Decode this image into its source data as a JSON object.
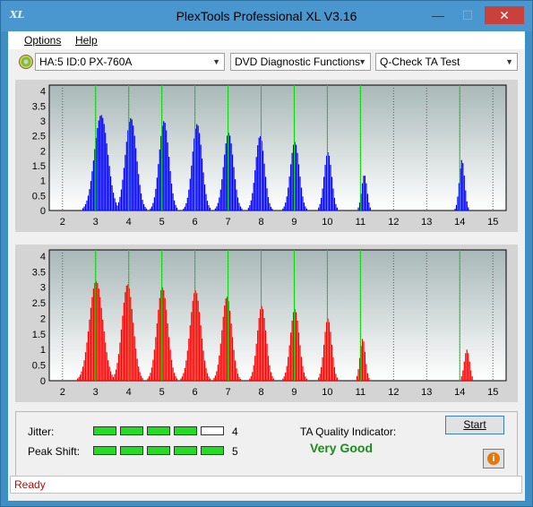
{
  "window": {
    "icon_text": "XL",
    "title": "PlexTools Professional XL V3.16",
    "minimize": "—",
    "maximize": "☐",
    "close": "✕"
  },
  "menu": [
    {
      "label": "Options"
    },
    {
      "label": "Help"
    }
  ],
  "toolbar": {
    "drive": "HA:5 ID:0  PX-760A",
    "function": "DVD Diagnostic Functions",
    "test": "Q-Check TA Test",
    "dropdown_arrow": "▼"
  },
  "chart_data": [
    {
      "type": "bar",
      "series": [
        {
          "name": "",
          "color": "#0000ff"
        }
      ],
      "x_ticks": [
        "2",
        "3",
        "4",
        "5",
        "6",
        "7",
        "8",
        "9",
        "10",
        "11",
        "12",
        "13",
        "14",
        "15"
      ],
      "y_ticks": [
        "0",
        "0.5",
        "1",
        "1.5",
        "2",
        "2.5",
        "3",
        "3.5",
        "4"
      ],
      "xlim": [
        1.6,
        15.4
      ],
      "ylim": [
        0,
        4.2
      ],
      "marker_lines": [
        3,
        4,
        5,
        6,
        7,
        8,
        9,
        10,
        11,
        14
      ],
      "peaks": [
        {
          "center": 3.15,
          "height": 3.2,
          "width": 0.3
        },
        {
          "center": 4.05,
          "height": 3.1,
          "width": 0.25
        },
        {
          "center": 5.05,
          "height": 3.0,
          "width": 0.22
        },
        {
          "center": 6.05,
          "height": 2.9,
          "width": 0.22
        },
        {
          "center": 7.0,
          "height": 2.6,
          "width": 0.22
        },
        {
          "center": 7.95,
          "height": 2.5,
          "width": 0.2
        },
        {
          "center": 9.0,
          "height": 2.3,
          "width": 0.2
        },
        {
          "center": 10.0,
          "height": 1.95,
          "width": 0.17
        },
        {
          "center": 11.1,
          "height": 1.2,
          "width": 0.12
        },
        {
          "center": 14.05,
          "height": 1.7,
          "width": 0.12
        }
      ]
    },
    {
      "type": "bar",
      "series": [
        {
          "name": "",
          "color": "#ff0000"
        }
      ],
      "x_ticks": [
        "2",
        "3",
        "4",
        "5",
        "6",
        "7",
        "8",
        "9",
        "10",
        "11",
        "12",
        "13",
        "14",
        "15"
      ],
      "y_ticks": [
        "0",
        "0.5",
        "1",
        "1.5",
        "2",
        "2.5",
        "3",
        "3.5",
        "4"
      ],
      "xlim": [
        1.6,
        15.4
      ],
      "ylim": [
        0,
        4.2
      ],
      "marker_lines": [
        3,
        4,
        5,
        6,
        7,
        8,
        9,
        10,
        11,
        14
      ],
      "peaks": [
        {
          "center": 3.0,
          "height": 3.2,
          "width": 0.3
        },
        {
          "center": 3.95,
          "height": 3.1,
          "width": 0.25
        },
        {
          "center": 5.0,
          "height": 3.0,
          "width": 0.24
        },
        {
          "center": 6.0,
          "height": 2.9,
          "width": 0.24
        },
        {
          "center": 6.95,
          "height": 2.7,
          "width": 0.22
        },
        {
          "center": 8.0,
          "height": 2.4,
          "width": 0.2
        },
        {
          "center": 9.0,
          "height": 2.3,
          "width": 0.2
        },
        {
          "center": 10.0,
          "height": 2.0,
          "width": 0.17
        },
        {
          "center": 11.05,
          "height": 1.35,
          "width": 0.12
        },
        {
          "center": 14.2,
          "height": 1.0,
          "width": 0.12
        }
      ]
    }
  ],
  "jitter": {
    "label": "Jitter:",
    "value": "4",
    "level": 4,
    "max": 5
  },
  "peak_shift": {
    "label": "Peak Shift:",
    "value": "5",
    "level": 5,
    "max": 5
  },
  "ta_quality": {
    "label": "TA Quality Indicator:",
    "value": "Very Good"
  },
  "buttons": {
    "start": "Start",
    "info": "i"
  },
  "status": "Ready"
}
